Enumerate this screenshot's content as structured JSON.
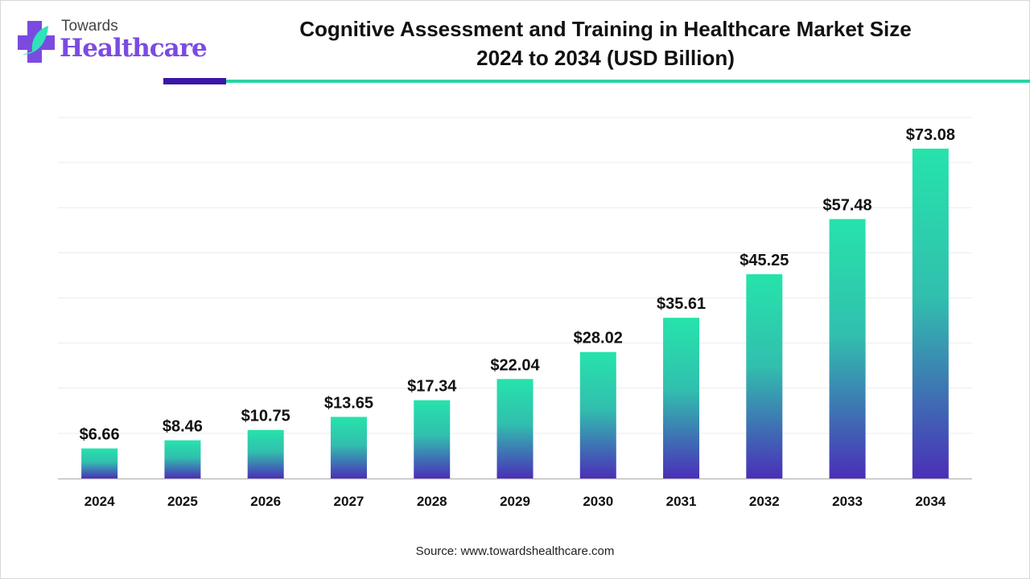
{
  "logo": {
    "line1": "Towards",
    "line2": "Healthcare"
  },
  "title_line1": "Cognitive Assessment and Training in Healthcare Market Size",
  "title_line2": "2024 to 2034 (USD Billion)",
  "source": "Source: www.towardshealthcare.com",
  "colors": {
    "bar_top": "#26e3ab",
    "bar_bottom": "#4a2fb8",
    "accent_dark": "#3a17a6",
    "accent_green": "#2bd3a4"
  },
  "chart_data": {
    "type": "bar",
    "title": "Cognitive Assessment and Training in Healthcare Market Size 2024 to 2034 (USD Billion)",
    "categories": [
      "2024",
      "2025",
      "2026",
      "2027",
      "2028",
      "2029",
      "2030",
      "2031",
      "2032",
      "2033",
      "2034"
    ],
    "values": [
      6.66,
      8.46,
      10.75,
      13.65,
      17.34,
      22.04,
      28.02,
      35.61,
      45.25,
      57.48,
      73.08
    ],
    "labels": [
      "$6.66",
      "$8.46",
      "$10.75",
      "$13.65",
      "$17.34",
      "$22.04",
      "$28.02",
      "$35.61",
      "$45.25",
      "$57.48",
      "$73.08"
    ],
    "xlabel": "",
    "ylabel": "",
    "ylim": [
      0,
      80
    ],
    "grid": true
  }
}
